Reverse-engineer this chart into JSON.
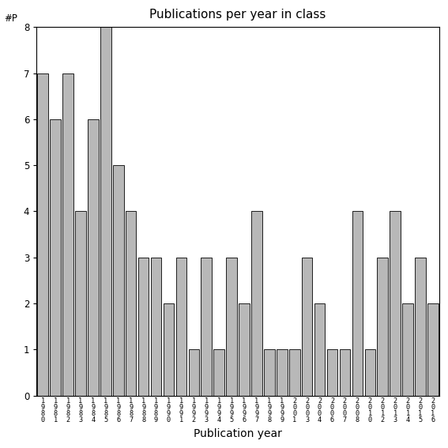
{
  "title": "Publications per year in class",
  "xlabel": "Publication year",
  "ylabel": "#P",
  "bar_color": "#b8b8b8",
  "categories": [
    "1\n9\n8\n0",
    "1\n9\n8\n1",
    "1\n9\n8\n2",
    "1\n9\n8\n3",
    "1\n9\n8\n4",
    "1\n9\n8\n5",
    "1\n9\n8\n6",
    "1\n9\n8\n7",
    "1\n9\n8\n8",
    "1\n9\n8\n9",
    "1\n9\n9\n0",
    "1\n9\n9\n1",
    "1\n9\n9\n2",
    "1\n9\n9\n3",
    "1\n9\n9\n4",
    "1\n9\n9\n5",
    "1\n9\n9\n6",
    "1\n9\n9\n7",
    "1\n9\n9\n8",
    "1\n9\n9\n9",
    "2\n0\n0\n1",
    "2\n0\n0\n3",
    "2\n0\n0\n4",
    "2\n0\n0\n6",
    "2\n0\n0\n7",
    "2\n0\n0\n8",
    "2\n0\n1\n0",
    "2\n0\n1\n2",
    "2\n0\n1\n3",
    "2\n0\n1\n4",
    "2\n0\n1\n5",
    "2\n0\n1\n6"
  ],
  "values": [
    7,
    6,
    7,
    4,
    6,
    8,
    5,
    4,
    3,
    3,
    2,
    3,
    1,
    3,
    1,
    3,
    2,
    4,
    1,
    1,
    1,
    3,
    2,
    1,
    1,
    4,
    1,
    3,
    4,
    2,
    3,
    2
  ],
  "ylim": [
    0,
    8
  ],
  "yticks": [
    0,
    1,
    2,
    3,
    4,
    5,
    6,
    7,
    8
  ],
  "background_color": "#ffffff",
  "bar_edge_color": "#000000",
  "title_fontsize": 11,
  "axis_fontsize": 10,
  "tick_fontsize": 8.5
}
